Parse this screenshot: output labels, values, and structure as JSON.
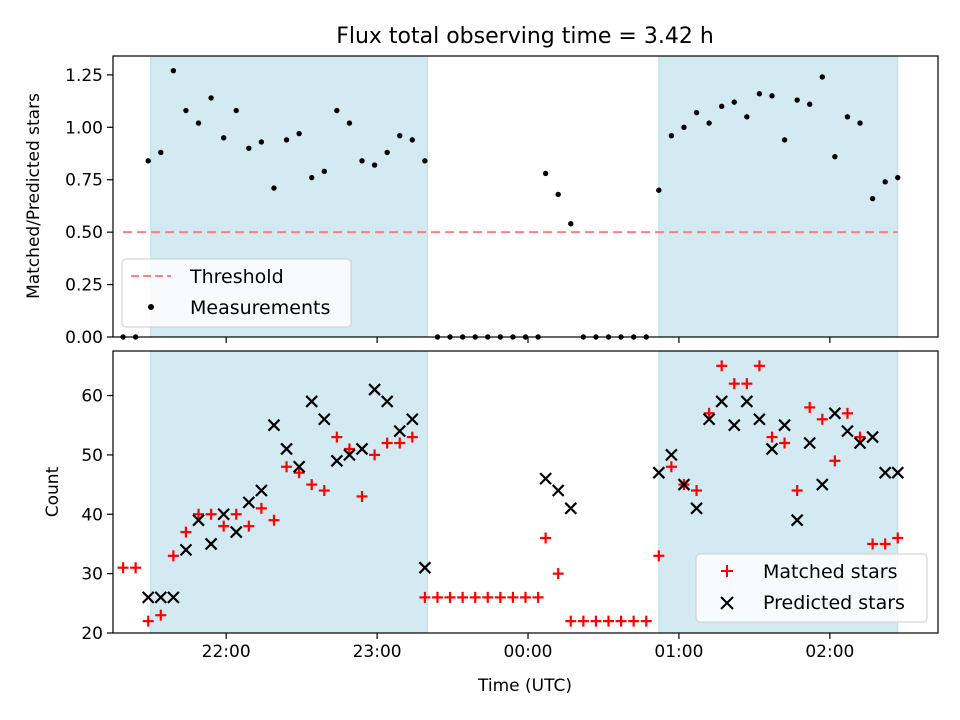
{
  "chart_data": {
    "title": "Flux total observing time = 3.42 h",
    "xlabel": "Time (UTC)",
    "x_unit": "UTC time",
    "x_range": [
      "21:15",
      "02:43"
    ],
    "x_tick_labels": [
      {
        "value": "22:00",
        "label": "22:00"
      },
      {
        "value": "23:00",
        "label": "23:00"
      },
      {
        "value": "00:00",
        "label": "00:00"
      },
      {
        "value": "01:00",
        "label": "01:00"
      },
      {
        "value": "02:00",
        "label": "02:00"
      }
    ],
    "shaded_intervals": [
      {
        "start": "21:30",
        "end": "23:20",
        "color": "#add8e6"
      },
      {
        "start": "00:52",
        "end": "02:27",
        "color": "#add8e6"
      }
    ],
    "panels": [
      {
        "type": "scatter",
        "ylabel": "Matched/Predicted stars",
        "ylim": [
          0,
          1.34
        ],
        "y_ticks": [
          "0.00",
          "0.25",
          "0.50",
          "0.75",
          "1.00",
          "1.25"
        ],
        "legend": {
          "position": "lower-left",
          "entries": [
            {
              "label": "Threshold",
              "style": "dashed-line",
              "color": "#ff8080"
            },
            {
              "label": "Measurements",
              "style": "dot",
              "color": "#000000"
            }
          ]
        },
        "threshold": {
          "label": "Threshold",
          "y": 0.5,
          "x_start": "21:19",
          "x_end": "02:27",
          "color": "#ff7f7f"
        },
        "series": [
          {
            "label": "Measurements",
            "color": "#000000",
            "marker": "dot",
            "points": [
              [
                "21:19",
                0.0
              ],
              [
                "21:24",
                0.0
              ],
              [
                "21:29",
                0.84
              ],
              [
                "21:34",
                0.88
              ],
              [
                "21:39",
                1.27
              ],
              [
                "21:44",
                1.08
              ],
              [
                "21:49",
                1.02
              ],
              [
                "21:54",
                1.14
              ],
              [
                "21:59",
                0.95
              ],
              [
                "22:04",
                1.08
              ],
              [
                "22:09",
                0.9
              ],
              [
                "22:14",
                0.93
              ],
              [
                "22:19",
                0.71
              ],
              [
                "22:24",
                0.94
              ],
              [
                "22:29",
                0.97
              ],
              [
                "22:34",
                0.76
              ],
              [
                "22:39",
                0.79
              ],
              [
                "22:44",
                1.08
              ],
              [
                "22:49",
                1.02
              ],
              [
                "22:54",
                0.84
              ],
              [
                "22:59",
                0.82
              ],
              [
                "23:04",
                0.88
              ],
              [
                "23:09",
                0.96
              ],
              [
                "23:14",
                0.94
              ],
              [
                "23:19",
                0.84
              ],
              [
                "23:24",
                0.0
              ],
              [
                "23:29",
                0.0
              ],
              [
                "23:34",
                0.0
              ],
              [
                "23:39",
                0.0
              ],
              [
                "23:44",
                0.0
              ],
              [
                "23:49",
                0.0
              ],
              [
                "23:54",
                0.0
              ],
              [
                "23:59",
                0.0
              ],
              [
                "00:04",
                0.0
              ],
              [
                "00:07",
                0.78
              ],
              [
                "00:12",
                0.68
              ],
              [
                "00:17",
                0.54
              ],
              [
                "00:22",
                0.0
              ],
              [
                "00:27",
                0.0
              ],
              [
                "00:32",
                0.0
              ],
              [
                "00:37",
                0.0
              ],
              [
                "00:42",
                0.0
              ],
              [
                "00:47",
                0.0
              ],
              [
                "00:52",
                0.7
              ],
              [
                "00:57",
                0.96
              ],
              [
                "01:02",
                1.0
              ],
              [
                "01:07",
                1.07
              ],
              [
                "01:12",
                1.02
              ],
              [
                "01:17",
                1.1
              ],
              [
                "01:22",
                1.12
              ],
              [
                "01:27",
                1.05
              ],
              [
                "01:32",
                1.16
              ],
              [
                "01:37",
                1.15
              ],
              [
                "01:42",
                0.94
              ],
              [
                "01:47",
                1.13
              ],
              [
                "01:52",
                1.11
              ],
              [
                "01:57",
                1.24
              ],
              [
                "02:02",
                0.86
              ],
              [
                "02:07",
                1.05
              ],
              [
                "02:12",
                1.02
              ],
              [
                "02:17",
                0.66
              ],
              [
                "02:22",
                0.74
              ],
              [
                "02:27",
                0.76
              ]
            ]
          }
        ]
      },
      {
        "type": "scatter",
        "ylabel": "Count",
        "ylim": [
          20,
          67.5
        ],
        "y_ticks": [
          "20",
          "30",
          "40",
          "50",
          "60"
        ],
        "legend": {
          "position": "lower-right",
          "entries": [
            {
              "label": "Matched stars",
              "style": "plus",
              "color": "#ff0000"
            },
            {
              "label": "Predicted stars",
              "style": "x",
              "color": "#000000"
            }
          ]
        },
        "series": [
          {
            "label": "Matched stars",
            "color": "#ff0000",
            "marker": "plus",
            "points": [
              [
                "21:19",
                31
              ],
              [
                "21:24",
                31
              ],
              [
                "21:29",
                22
              ],
              [
                "21:34",
                23
              ],
              [
                "21:39",
                33
              ],
              [
                "21:44",
                37
              ],
              [
                "21:49",
                40
              ],
              [
                "21:54",
                40
              ],
              [
                "21:59",
                38
              ],
              [
                "22:04",
                40
              ],
              [
                "22:09",
                38
              ],
              [
                "22:14",
                41
              ],
              [
                "22:19",
                39
              ],
              [
                "22:24",
                48
              ],
              [
                "22:29",
                47
              ],
              [
                "22:34",
                45
              ],
              [
                "22:39",
                44
              ],
              [
                "22:44",
                53
              ],
              [
                "22:49",
                51
              ],
              [
                "22:54",
                43
              ],
              [
                "22:59",
                50
              ],
              [
                "23:04",
                52
              ],
              [
                "23:09",
                52
              ],
              [
                "23:14",
                53
              ],
              [
                "23:19",
                26
              ],
              [
                "23:24",
                26
              ],
              [
                "23:29",
                26
              ],
              [
                "23:34",
                26
              ],
              [
                "23:39",
                26
              ],
              [
                "23:44",
                26
              ],
              [
                "23:49",
                26
              ],
              [
                "23:54",
                26
              ],
              [
                "23:59",
                26
              ],
              [
                "00:04",
                26
              ],
              [
                "00:07",
                36
              ],
              [
                "00:12",
                30
              ],
              [
                "00:17",
                22
              ],
              [
                "00:22",
                22
              ],
              [
                "00:27",
                22
              ],
              [
                "00:32",
                22
              ],
              [
                "00:37",
                22
              ],
              [
                "00:42",
                22
              ],
              [
                "00:47",
                22
              ],
              [
                "00:52",
                33
              ],
              [
                "00:57",
                48
              ],
              [
                "01:02",
                45
              ],
              [
                "01:07",
                44
              ],
              [
                "01:12",
                57
              ],
              [
                "01:17",
                65
              ],
              [
                "01:22",
                62
              ],
              [
                "01:27",
                62
              ],
              [
                "01:32",
                65
              ],
              [
                "01:37",
                53
              ],
              [
                "01:42",
                52
              ],
              [
                "01:47",
                44
              ],
              [
                "01:52",
                58
              ],
              [
                "01:57",
                56
              ],
              [
                "02:02",
                49
              ],
              [
                "02:07",
                57
              ],
              [
                "02:12",
                53
              ],
              [
                "02:17",
                35
              ],
              [
                "02:22",
                35
              ],
              [
                "02:27",
                36
              ]
            ]
          },
          {
            "label": "Predicted stars",
            "color": "#000000",
            "marker": "x",
            "points": [
              [
                "21:29",
                26
              ],
              [
                "21:34",
                26
              ],
              [
                "21:39",
                26
              ],
              [
                "21:44",
                34
              ],
              [
                "21:49",
                39
              ],
              [
                "21:54",
                35
              ],
              [
                "21:59",
                40
              ],
              [
                "22:04",
                37
              ],
              [
                "22:09",
                42
              ],
              [
                "22:14",
                44
              ],
              [
                "22:19",
                55
              ],
              [
                "22:24",
                51
              ],
              [
                "22:29",
                48
              ],
              [
                "22:34",
                59
              ],
              [
                "22:39",
                56
              ],
              [
                "22:44",
                49
              ],
              [
                "22:49",
                50
              ],
              [
                "22:54",
                51
              ],
              [
                "22:59",
                61
              ],
              [
                "23:04",
                59
              ],
              [
                "23:09",
                54
              ],
              [
                "23:14",
                56
              ],
              [
                "23:19",
                31
              ],
              [
                "00:07",
                46
              ],
              [
                "00:12",
                44
              ],
              [
                "00:17",
                41
              ],
              [
                "00:52",
                47
              ],
              [
                "00:57",
                50
              ],
              [
                "01:02",
                45
              ],
              [
                "01:07",
                41
              ],
              [
                "01:12",
                56
              ],
              [
                "01:17",
                59
              ],
              [
                "01:22",
                55
              ],
              [
                "01:27",
                59
              ],
              [
                "01:32",
                56
              ],
              [
                "01:37",
                51
              ],
              [
                "01:42",
                55
              ],
              [
                "01:47",
                39
              ],
              [
                "01:52",
                52
              ],
              [
                "01:57",
                45
              ],
              [
                "02:02",
                57
              ],
              [
                "02:07",
                54
              ],
              [
                "02:12",
                52
              ],
              [
                "02:17",
                53
              ],
              [
                "02:22",
                47
              ],
              [
                "02:27",
                47
              ]
            ]
          }
        ]
      }
    ]
  }
}
